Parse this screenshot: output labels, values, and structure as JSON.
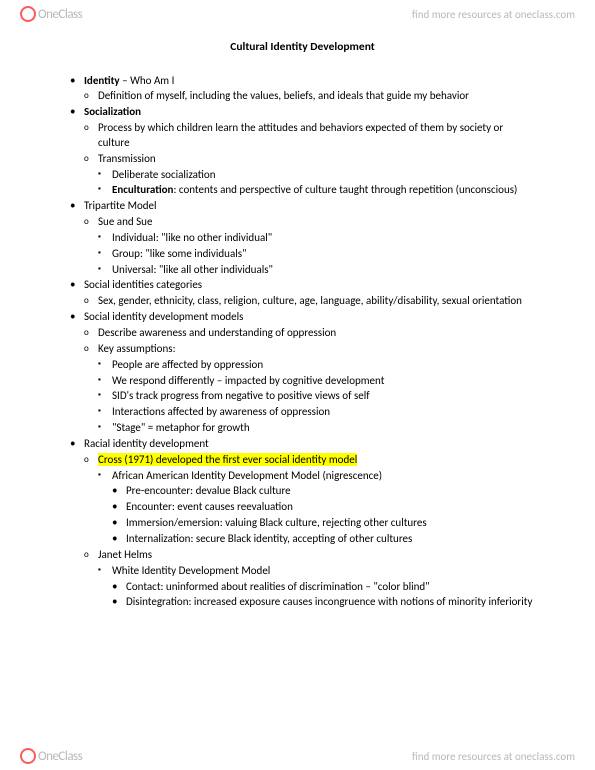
{
  "brand": {
    "name": "OneClass",
    "link_text": "find more resources at oneclass.com"
  },
  "title": "Cultural Identity Development",
  "outline": [
    {
      "runs": [
        {
          "t": "Identity",
          "b": true
        },
        {
          "t": " – Who Am I"
        }
      ],
      "children": [
        {
          "runs": [
            {
              "t": "Definition of myself, including the values, beliefs, and ideals that guide my behavior"
            }
          ]
        }
      ]
    },
    {
      "runs": [
        {
          "t": "Socialization",
          "b": true
        }
      ],
      "children": [
        {
          "runs": [
            {
              "t": "Process by which children learn the attitudes and behaviors expected of them by society or culture"
            }
          ]
        },
        {
          "runs": [
            {
              "t": "Transmission"
            }
          ],
          "children": [
            {
              "runs": [
                {
                  "t": "Deliberate socialization"
                }
              ]
            },
            {
              "runs": [
                {
                  "t": "Enculturation",
                  "b": true
                },
                {
                  "t": ": contents and perspective of culture taught through repetition (unconscious)"
                }
              ]
            }
          ]
        }
      ]
    },
    {
      "runs": [
        {
          "t": "Tripartite Model"
        }
      ],
      "children": [
        {
          "runs": [
            {
              "t": "Sue and Sue"
            }
          ],
          "children": [
            {
              "runs": [
                {
                  "t": "Individual: \"like no other individual\""
                }
              ]
            },
            {
              "runs": [
                {
                  "t": "Group: \"like some individuals\""
                }
              ]
            },
            {
              "runs": [
                {
                  "t": "Universal: \"like all other individuals\""
                }
              ]
            }
          ]
        }
      ]
    },
    {
      "runs": [
        {
          "t": "Social identities categories"
        }
      ],
      "children": [
        {
          "runs": [
            {
              "t": "Sex, gender, ethnicity, class, religion, culture, age, language, ability/disability, sexual orientation"
            }
          ]
        }
      ]
    },
    {
      "runs": [
        {
          "t": "Social identity development models"
        }
      ],
      "children": [
        {
          "runs": [
            {
              "t": "Describe awareness and understanding of oppression"
            }
          ]
        },
        {
          "runs": [
            {
              "t": "Key assumptions:"
            }
          ],
          "children": [
            {
              "runs": [
                {
                  "t": "People are affected by oppression"
                }
              ]
            },
            {
              "runs": [
                {
                  "t": "We respond differently – impacted by cognitive development"
                }
              ]
            },
            {
              "runs": [
                {
                  "t": "SID's track progress from negative to positive views of self"
                }
              ]
            },
            {
              "runs": [
                {
                  "t": "Interactions affected by awareness of oppression"
                }
              ]
            },
            {
              "runs": [
                {
                  "t": "\"Stage\" = metaphor for growth"
                }
              ]
            }
          ]
        }
      ]
    },
    {
      "runs": [
        {
          "t": "Racial identity development"
        }
      ],
      "children": [
        {
          "runs": [
            {
              "t": "Cross (1971) developed the first ever social identity model",
              "hl": true
            }
          ],
          "children": [
            {
              "runs": [
                {
                  "t": "African American Identity Development Model (nigrescence)"
                }
              ],
              "children": [
                {
                  "runs": [
                    {
                      "t": "Pre-encounter: devalue Black culture"
                    }
                  ]
                },
                {
                  "runs": [
                    {
                      "t": "Encounter: event causes reevaluation"
                    }
                  ]
                },
                {
                  "runs": [
                    {
                      "t": "Immersion/emersion: valuing Black culture, rejecting other cultures"
                    }
                  ]
                },
                {
                  "runs": [
                    {
                      "t": "Internalization: secure Black identity, accepting of other cultures"
                    }
                  ]
                }
              ]
            }
          ]
        },
        {
          "runs": [
            {
              "t": "Janet Helms"
            }
          ],
          "children": [
            {
              "runs": [
                {
                  "t": "White Identity Development Model"
                }
              ],
              "children": [
                {
                  "runs": [
                    {
                      "t": "Contact: uninformed about realities of discrimination – \"color blind\""
                    }
                  ]
                },
                {
                  "runs": [
                    {
                      "t": "Disintegration: increased exposure causes incongruence with notions of minority inferiority"
                    }
                  ]
                }
              ]
            }
          ]
        }
      ]
    }
  ]
}
